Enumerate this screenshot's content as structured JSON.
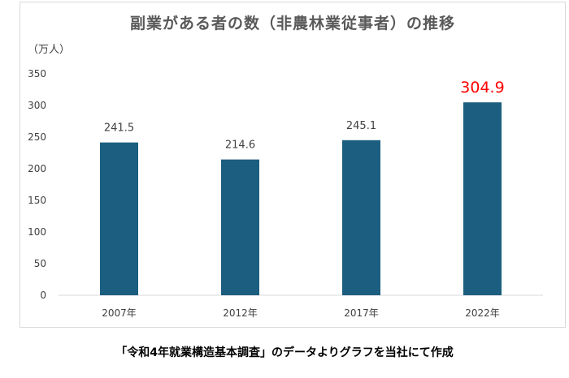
{
  "chart_data": {
    "type": "bar",
    "title": "副業がある者の数（非農林業従事者）の推移",
    "ylabel": "（万人）",
    "categories": [
      "2007年",
      "2012年",
      "2017年",
      "2022年"
    ],
    "values": [
      241.5,
      214.6,
      245.1,
      304.9
    ],
    "value_labels": [
      "241.5",
      "214.6",
      "245.1",
      "304.9"
    ],
    "ylim": [
      0,
      350
    ],
    "yticks": [
      "0",
      "50",
      "100",
      "150",
      "200",
      "250",
      "300",
      "350"
    ],
    "grid": false,
    "legend": "none",
    "bar_color": "#1b5e7f",
    "highlight_index": 3,
    "highlight_label_color": "#ff0000"
  },
  "caption": "「令和4年就業構造基本調査」のデータよりグラフを当社にて作成"
}
